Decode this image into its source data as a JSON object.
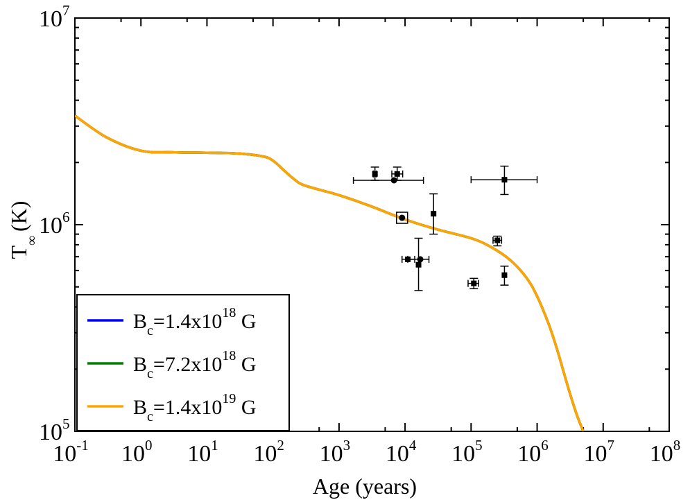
{
  "chart_data": {
    "type": "line",
    "title": "",
    "xlabel": "Age (years)",
    "ylabel_main": "T",
    "ylabel_sub": "∞",
    "ylabel_unit": "(K)",
    "x_scale": "log",
    "y_scale": "log",
    "xlim": [
      0.1,
      100000000
    ],
    "ylim": [
      100000,
      10000000
    ],
    "x_tick_labels": [
      {
        "base": "10",
        "exp": "-1",
        "value": 0.1
      },
      {
        "base": "10",
        "exp": "0",
        "value": 1
      },
      {
        "base": "10",
        "exp": "1",
        "value": 10
      },
      {
        "base": "10",
        "exp": "2",
        "value": 100
      },
      {
        "base": "10",
        "exp": "3",
        "value": 1000
      },
      {
        "base": "10",
        "exp": "4",
        "value": 10000
      },
      {
        "base": "10",
        "exp": "5",
        "value": 100000
      },
      {
        "base": "10",
        "exp": "6",
        "value": 1000000
      },
      {
        "base": "10",
        "exp": "7",
        "value": 10000000
      },
      {
        "base": "10",
        "exp": "8",
        "value": 100000000
      }
    ],
    "y_tick_labels": [
      {
        "base": "10",
        "exp": "5",
        "value": 100000
      },
      {
        "base": "10",
        "exp": "6",
        "value": 1000000
      },
      {
        "base": "10",
        "exp": "7",
        "value": 10000000
      }
    ],
    "legend_position": "bottom-left",
    "series": [
      {
        "name": "B_c=1.4x10^18 G",
        "label_parts": {
          "B": "B",
          "sub": "c",
          "mid": "=1.4x10",
          "sup": "18",
          "end": " G"
        },
        "color": "#0000ff",
        "x": [
          0.1,
          0.3,
          1,
          3,
          10,
          30,
          70,
          100,
          150,
          200,
          300,
          1000,
          3000,
          10000,
          30000,
          100000,
          200000,
          400000,
          700000,
          1000000,
          1500000,
          2000000,
          3000000,
          4000000,
          5000000
        ],
        "y": [
          3370000,
          2650000,
          2280000,
          2240000,
          2230000,
          2210000,
          2140000,
          2040000,
          1820000,
          1680000,
          1550000,
          1390000,
          1230000,
          1060000,
          950000,
          860000,
          780000,
          670000,
          550000,
          450000,
          330000,
          250000,
          160000,
          120000,
          100000
        ]
      },
      {
        "name": "B_c=7.2x10^18 G",
        "label_parts": {
          "B": "B",
          "sub": "c",
          "mid": "=7.2x10",
          "sup": "18",
          "end": " G"
        },
        "color": "#008000",
        "x": [
          0.1,
          0.3,
          1,
          3,
          10,
          30,
          70,
          100,
          150,
          200,
          300,
          1000,
          3000,
          10000,
          30000,
          100000,
          200000,
          400000,
          700000,
          1000000,
          1500000,
          2000000,
          3000000,
          4000000,
          5000000
        ],
        "y": [
          3370000,
          2650000,
          2280000,
          2240000,
          2230000,
          2210000,
          2140000,
          2040000,
          1820000,
          1680000,
          1550000,
          1390000,
          1230000,
          1060000,
          950000,
          860000,
          780000,
          670000,
          550000,
          450000,
          330000,
          250000,
          160000,
          120000,
          100000
        ]
      },
      {
        "name": "B_c=1.4x10^19 G",
        "label_parts": {
          "B": "B",
          "sub": "c",
          "mid": "=1.4x10",
          "sup": "19",
          "end": " G"
        },
        "color": "#ffa500",
        "x": [
          0.1,
          0.3,
          1,
          3,
          10,
          30,
          70,
          100,
          150,
          200,
          300,
          1000,
          3000,
          10000,
          30000,
          100000,
          200000,
          400000,
          700000,
          1000000,
          1500000,
          2000000,
          3000000,
          4000000,
          5000000
        ],
        "y": [
          3370000,
          2650000,
          2280000,
          2240000,
          2230000,
          2210000,
          2140000,
          2040000,
          1820000,
          1680000,
          1550000,
          1390000,
          1230000,
          1060000,
          950000,
          860000,
          780000,
          670000,
          550000,
          450000,
          330000,
          250000,
          160000,
          120000,
          100000
        ]
      }
    ],
    "observations": [
      {
        "x": 3500,
        "y": 1760000,
        "marker": "square",
        "xerr": [
          3300,
          3700
        ],
        "yerr": [
          1640000,
          1900000
        ]
      },
      {
        "x": 7600,
        "y": 1760000,
        "marker": "square",
        "xerr": [
          6300,
          9200
        ],
        "yerr": [
          1640000,
          1900000
        ]
      },
      {
        "x": 6800,
        "y": 1640000,
        "marker": "circle",
        "xerr": [
          1650,
          19000
        ],
        "yerr": [
          1640000,
          1640000
        ]
      },
      {
        "x": 9000,
        "y": 1080000,
        "marker": "circle",
        "boxed": true
      },
      {
        "x": 27000,
        "y": 1130000,
        "marker": "square",
        "xerr": [
          27000,
          27000
        ],
        "yerr": [
          900000,
          1410000
        ]
      },
      {
        "x": 11000,
        "y": 680000,
        "marker": "square",
        "xerr": [
          9000,
          14000
        ],
        "yerr": [
          680000,
          680000
        ]
      },
      {
        "x": 17000,
        "y": 680000,
        "marker": "circle",
        "xerr": [
          11000,
          23000
        ],
        "yerr": [
          680000,
          680000
        ]
      },
      {
        "x": 16000,
        "y": 640000,
        "marker": "square",
        "xerr": [
          16000,
          16000
        ],
        "yerr": [
          480000,
          860000
        ]
      },
      {
        "x": 110000,
        "y": 520000,
        "marker": "square",
        "xerr": [
          90000,
          130000
        ],
        "yerr": [
          490000,
          550000
        ]
      },
      {
        "x": 250000,
        "y": 840000,
        "marker": "square",
        "xerr": [
          215000,
          290000
        ],
        "yerr": [
          790000,
          880000
        ]
      },
      {
        "x": 320000,
        "y": 570000,
        "marker": "square",
        "xerr": [
          320000,
          320000
        ],
        "yerr": [
          510000,
          630000
        ]
      },
      {
        "x": 320000,
        "y": 1650000,
        "marker": "square",
        "xerr": [
          100000,
          1000000
        ],
        "yerr": [
          1400000,
          1920000
        ]
      }
    ]
  }
}
